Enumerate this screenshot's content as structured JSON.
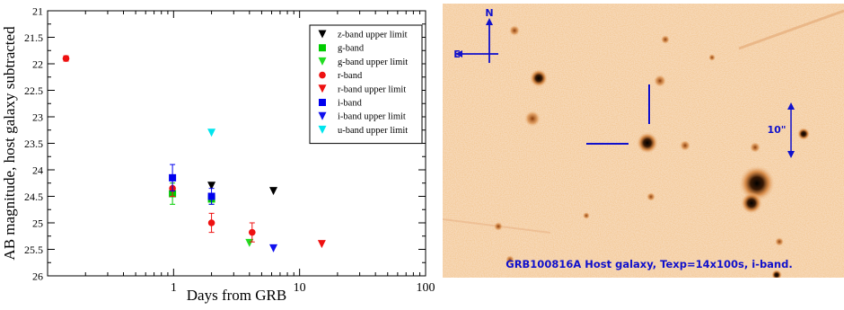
{
  "chart_data": {
    "type": "scatter",
    "xscale": "log",
    "yaxis_inverted": true,
    "xlim": [
      0.1,
      100
    ],
    "ylim": [
      26,
      21
    ],
    "xlabel": "Days from GRB",
    "ylabel": "AB magnitude, host galaxy subtracted",
    "x_tick_labels": [
      "1",
      "10",
      "100"
    ],
    "y_tick_labels": [
      "21",
      "21.5",
      "22",
      "22.5",
      "23",
      "23.5",
      "24",
      "24.5",
      "25",
      "25.5",
      "26"
    ],
    "grid": false,
    "legend_position": "top-right",
    "series": [
      {
        "name": "z-band upper limit",
        "marker": "triangle-down",
        "color": "#000000",
        "points": [
          {
            "x": 2.0,
            "y": 24.3
          },
          {
            "x": 6.2,
            "y": 24.4
          }
        ]
      },
      {
        "name": "g-band",
        "marker": "square",
        "color": "#00cc00",
        "points": [
          {
            "x": 0.98,
            "y": 24.45,
            "err": 0.2
          },
          {
            "x": 2.0,
            "y": 24.55,
            "err": 0.1
          }
        ]
      },
      {
        "name": "g-band upper limit",
        "marker": "triangle-down",
        "color": "#22dd22",
        "points": [
          {
            "x": 4.0,
            "y": 25.38
          }
        ]
      },
      {
        "name": "r-band",
        "marker": "circle",
        "color": "#ee1111",
        "points": [
          {
            "x": 0.14,
            "y": 21.9,
            "err": 0.05
          },
          {
            "x": 0.98,
            "y": 24.35,
            "err": 0.15
          },
          {
            "x": 2.0,
            "y": 25.0,
            "err": 0.18
          },
          {
            "x": 4.2,
            "y": 25.18,
            "err": 0.18
          }
        ]
      },
      {
        "name": "r-band upper limit",
        "marker": "triangle-down",
        "color": "#ee1111",
        "points": [
          {
            "x": 15.0,
            "y": 25.4
          }
        ]
      },
      {
        "name": "i-band",
        "marker": "square",
        "color": "#0000ee",
        "points": [
          {
            "x": 0.98,
            "y": 24.15,
            "err": 0.25
          },
          {
            "x": 2.0,
            "y": 24.5,
            "err": 0.15
          }
        ]
      },
      {
        "name": "i-band upper limit",
        "marker": "triangle-down",
        "color": "#1111ee",
        "points": [
          {
            "x": 6.2,
            "y": 25.48
          }
        ]
      },
      {
        "name": "u-band upper limit",
        "marker": "triangle-down",
        "color": "#00e5ee",
        "points": [
          {
            "x": 2.0,
            "y": 23.3
          }
        ]
      }
    ]
  },
  "image_panel": {
    "compass_north": "N",
    "compass_east": "E",
    "scale_label": "10\"",
    "caption": "GRB100816A Host galaxy, Texp=14x100s, i-band."
  }
}
